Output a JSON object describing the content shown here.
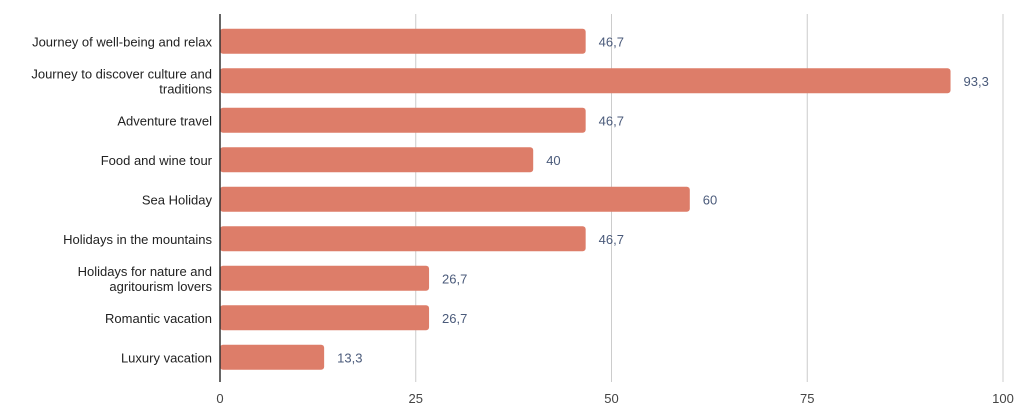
{
  "chart_data": {
    "type": "bar",
    "orientation": "horizontal",
    "categories": [
      [
        "Journey of well-being and relax"
      ],
      [
        "Journey to discover culture and",
        "traditions"
      ],
      [
        "Adventure travel"
      ],
      [
        "Food and wine tour"
      ],
      [
        "Sea Holiday"
      ],
      [
        "Holidays in the mountains"
      ],
      [
        "Holidays for nature and",
        "agritourism lovers"
      ],
      [
        "Romantic vacation"
      ],
      [
        "Luxury vacation"
      ]
    ],
    "values": [
      46.7,
      93.3,
      46.7,
      40,
      60,
      46.7,
      26.7,
      26.7,
      13.3
    ],
    "value_labels": [
      "46,7",
      "93,3",
      "46,7",
      "40",
      "60",
      "46,7",
      "26,7",
      "26,7",
      "13,3"
    ],
    "xlim": [
      0,
      100
    ],
    "x_ticks": [
      0,
      25,
      50,
      75,
      100
    ],
    "grid": "vertical",
    "legend": "none",
    "colors": {
      "bar": "#dd7d69",
      "grid": "#cccccc",
      "axis": "#333333",
      "value_label": "#4a5a7a",
      "category_label": "#222222",
      "tick_label": "#444444"
    }
  }
}
